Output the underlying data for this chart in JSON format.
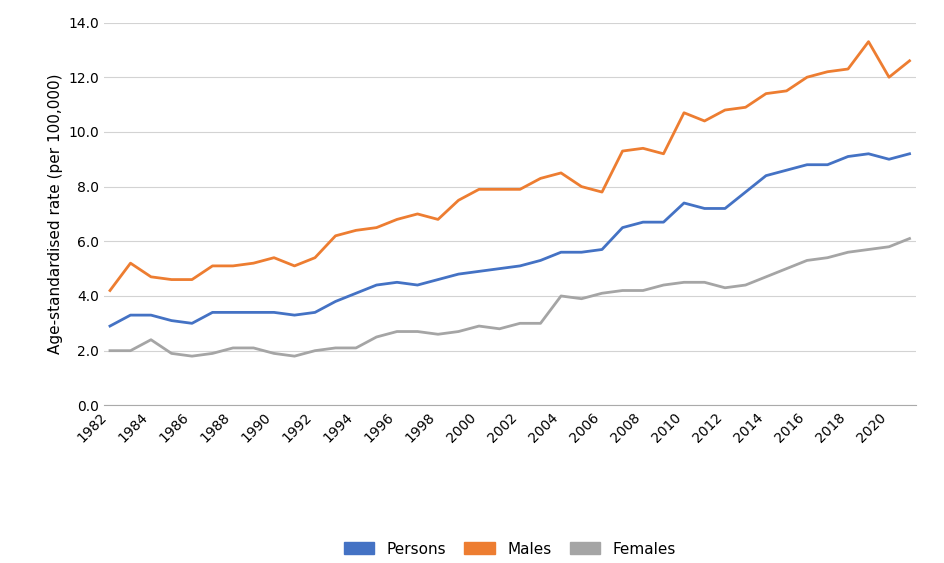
{
  "years": [
    1982,
    1983,
    1984,
    1985,
    1986,
    1987,
    1988,
    1989,
    1990,
    1991,
    1992,
    1993,
    1994,
    1995,
    1996,
    1997,
    1998,
    1999,
    2000,
    2001,
    2002,
    2003,
    2004,
    2005,
    2006,
    2007,
    2008,
    2009,
    2010,
    2011,
    2012,
    2013,
    2014,
    2015,
    2016,
    2017,
    2018,
    2019,
    2020,
    2021
  ],
  "persons": [
    2.9,
    3.3,
    3.3,
    3.1,
    3.0,
    3.4,
    3.4,
    3.4,
    3.4,
    3.3,
    3.4,
    3.8,
    4.1,
    4.4,
    4.5,
    4.4,
    4.6,
    4.8,
    4.9,
    5.0,
    5.1,
    5.3,
    5.6,
    5.6,
    5.7,
    6.5,
    6.7,
    6.7,
    7.4,
    7.2,
    7.2,
    7.8,
    8.4,
    8.6,
    8.8,
    8.8,
    9.1,
    9.2,
    9.0,
    9.2
  ],
  "males": [
    4.2,
    5.2,
    4.7,
    4.6,
    4.6,
    5.1,
    5.1,
    5.2,
    5.4,
    5.1,
    5.4,
    6.2,
    6.4,
    6.5,
    6.8,
    7.0,
    6.8,
    7.5,
    7.9,
    7.9,
    7.9,
    8.3,
    8.5,
    8.0,
    7.8,
    9.3,
    9.4,
    9.2,
    10.7,
    10.4,
    10.8,
    10.9,
    11.4,
    11.5,
    12.0,
    12.2,
    12.3,
    13.3,
    12.0,
    12.6
  ],
  "females": [
    2.0,
    2.0,
    2.4,
    1.9,
    1.8,
    1.9,
    2.1,
    2.1,
    1.9,
    1.8,
    2.0,
    2.1,
    2.1,
    2.5,
    2.7,
    2.7,
    2.6,
    2.7,
    2.9,
    2.8,
    3.0,
    3.0,
    4.0,
    3.9,
    4.1,
    4.2,
    4.2,
    4.4,
    4.5,
    4.5,
    4.3,
    4.4,
    4.7,
    5.0,
    5.3,
    5.4,
    5.6,
    5.7,
    5.8,
    6.1
  ],
  "persons_color": "#4472C4",
  "males_color": "#ED7D31",
  "females_color": "#A5A5A5",
  "ylabel": "Age-standardised rate (per 100,000)",
  "ylim": [
    0.0,
    14.0
  ],
  "yticks": [
    0.0,
    2.0,
    4.0,
    6.0,
    8.0,
    10.0,
    12.0,
    14.0
  ],
  "xtick_years": [
    1982,
    1984,
    1986,
    1988,
    1990,
    1992,
    1994,
    1996,
    1998,
    2000,
    2002,
    2004,
    2006,
    2008,
    2010,
    2012,
    2014,
    2016,
    2018,
    2020
  ],
  "legend_labels": [
    "Persons",
    "Males",
    "Females"
  ],
  "line_width": 2.0,
  "bg_color": "#FFFFFF",
  "grid_color": "#D3D3D3"
}
